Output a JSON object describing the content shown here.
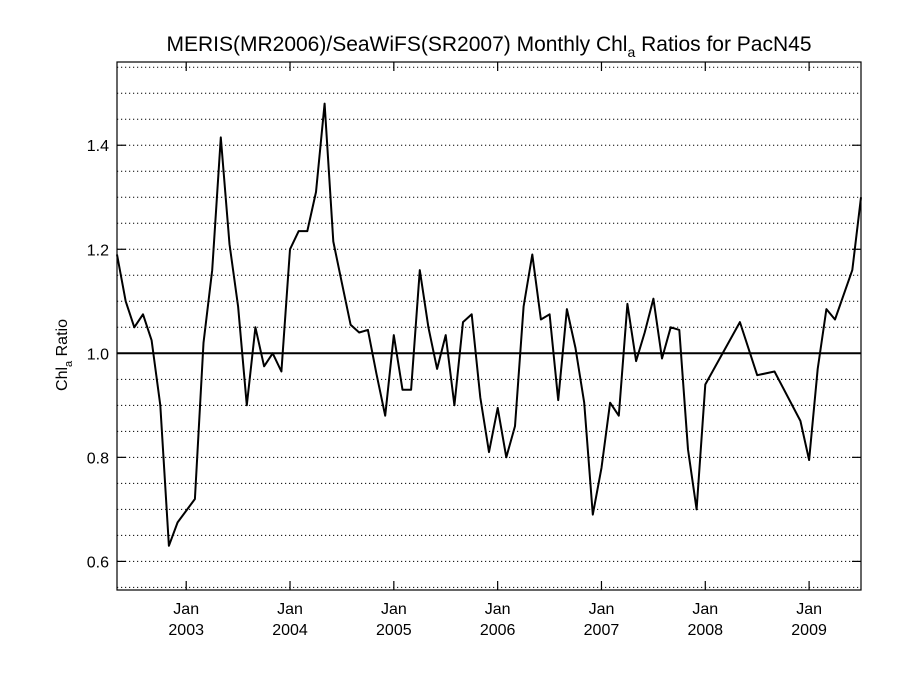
{
  "chart_data": {
    "type": "line",
    "title_main": "MERIS(MR2006)/SeaWiFS(SR2007) Monthly Chl",
    "title_sub": "a",
    "title_rest": " Ratios for PacN45",
    "ylabel_main": "Chl",
    "ylabel_sub": "a",
    "ylabel_rest": " Ratio",
    "ylim": [
      0.545,
      1.56
    ],
    "y_ticks": [
      0.6,
      0.8,
      1.0,
      1.2,
      1.4
    ],
    "y_tick_labels": [
      "0.6",
      "0.8",
      "1.0",
      "1.2",
      "1.4"
    ],
    "y_minor_step": 0.05,
    "grid": "horizontal dotted",
    "reference_line": 1.0,
    "xlim": [
      "2002-05-01",
      "2009-07-01"
    ],
    "x_ticks": [
      "2003-01-01",
      "2004-01-01",
      "2005-01-01",
      "2006-01-01",
      "2007-01-01",
      "2008-01-01",
      "2009-01-01"
    ],
    "x_tick_labels": [
      {
        "month": "Jan",
        "year": "2003"
      },
      {
        "month": "Jan",
        "year": "2004"
      },
      {
        "month": "Jan",
        "year": "2005"
      },
      {
        "month": "Jan",
        "year": "2006"
      },
      {
        "month": "Jan",
        "year": "2007"
      },
      {
        "month": "Jan",
        "year": "2008"
      },
      {
        "month": "Jan",
        "year": "2009"
      }
    ],
    "series": [
      {
        "color": "#000000",
        "x": [
          "2002-05",
          "2002-06",
          "2002-07",
          "2002-08",
          "2002-09",
          "2002-10",
          "2002-11",
          "2002-12",
          "2003-02",
          "2003-03",
          "2003-04",
          "2003-05",
          "2003-06",
          "2003-07",
          "2003-08",
          "2003-09",
          "2003-10",
          "2003-11",
          "2003-12",
          "2004-01",
          "2004-02",
          "2004-03",
          "2004-04",
          "2004-05",
          "2004-06",
          "2004-07",
          "2004-08",
          "2004-09",
          "2004-10",
          "2004-11",
          "2004-12",
          "2005-01",
          "2005-02",
          "2005-03",
          "2005-04",
          "2005-05",
          "2005-06",
          "2005-07",
          "2005-08",
          "2005-09",
          "2005-10",
          "2005-11",
          "2005-12",
          "2006-01",
          "2006-02",
          "2006-03",
          "2006-04",
          "2006-05",
          "2006-06",
          "2006-07",
          "2006-08",
          "2006-09",
          "2006-10",
          "2006-11",
          "2006-12",
          "2007-01",
          "2007-02",
          "2007-03",
          "2007-04",
          "2007-05",
          "2007-06",
          "2007-07",
          "2007-08",
          "2007-09",
          "2007-10",
          "2007-11",
          "2007-12",
          "2008-01",
          "2008-05",
          "2008-07",
          "2008-09",
          "2008-12",
          "2009-01",
          "2009-02",
          "2009-03",
          "2009-04",
          "2009-06",
          "2009-07"
        ],
        "y": [
          1.19,
          1.1,
          1.05,
          1.075,
          1.025,
          0.9,
          0.63,
          0.675,
          0.72,
          1.02,
          1.16,
          1.415,
          1.21,
          1.09,
          0.9,
          1.05,
          0.975,
          1.0,
          0.965,
          1.2,
          1.235,
          1.235,
          1.31,
          1.48,
          1.215,
          1.135,
          1.055,
          1.04,
          1.045,
          0.96,
          0.88,
          1.035,
          0.93,
          0.93,
          1.16,
          1.05,
          0.97,
          1.035,
          0.9,
          1.06,
          1.075,
          0.915,
          0.81,
          0.895,
          0.8,
          0.86,
          1.09,
          1.19,
          1.065,
          1.075,
          0.91,
          1.085,
          1.01,
          0.905,
          0.69,
          0.78,
          0.905,
          0.88,
          1.095,
          0.985,
          1.04,
          1.105,
          0.99,
          1.05,
          1.045,
          0.815,
          0.7,
          0.94,
          1.06,
          0.958,
          0.965,
          0.87,
          0.795,
          0.97,
          1.085,
          1.065,
          1.16,
          1.3
        ]
      }
    ]
  }
}
